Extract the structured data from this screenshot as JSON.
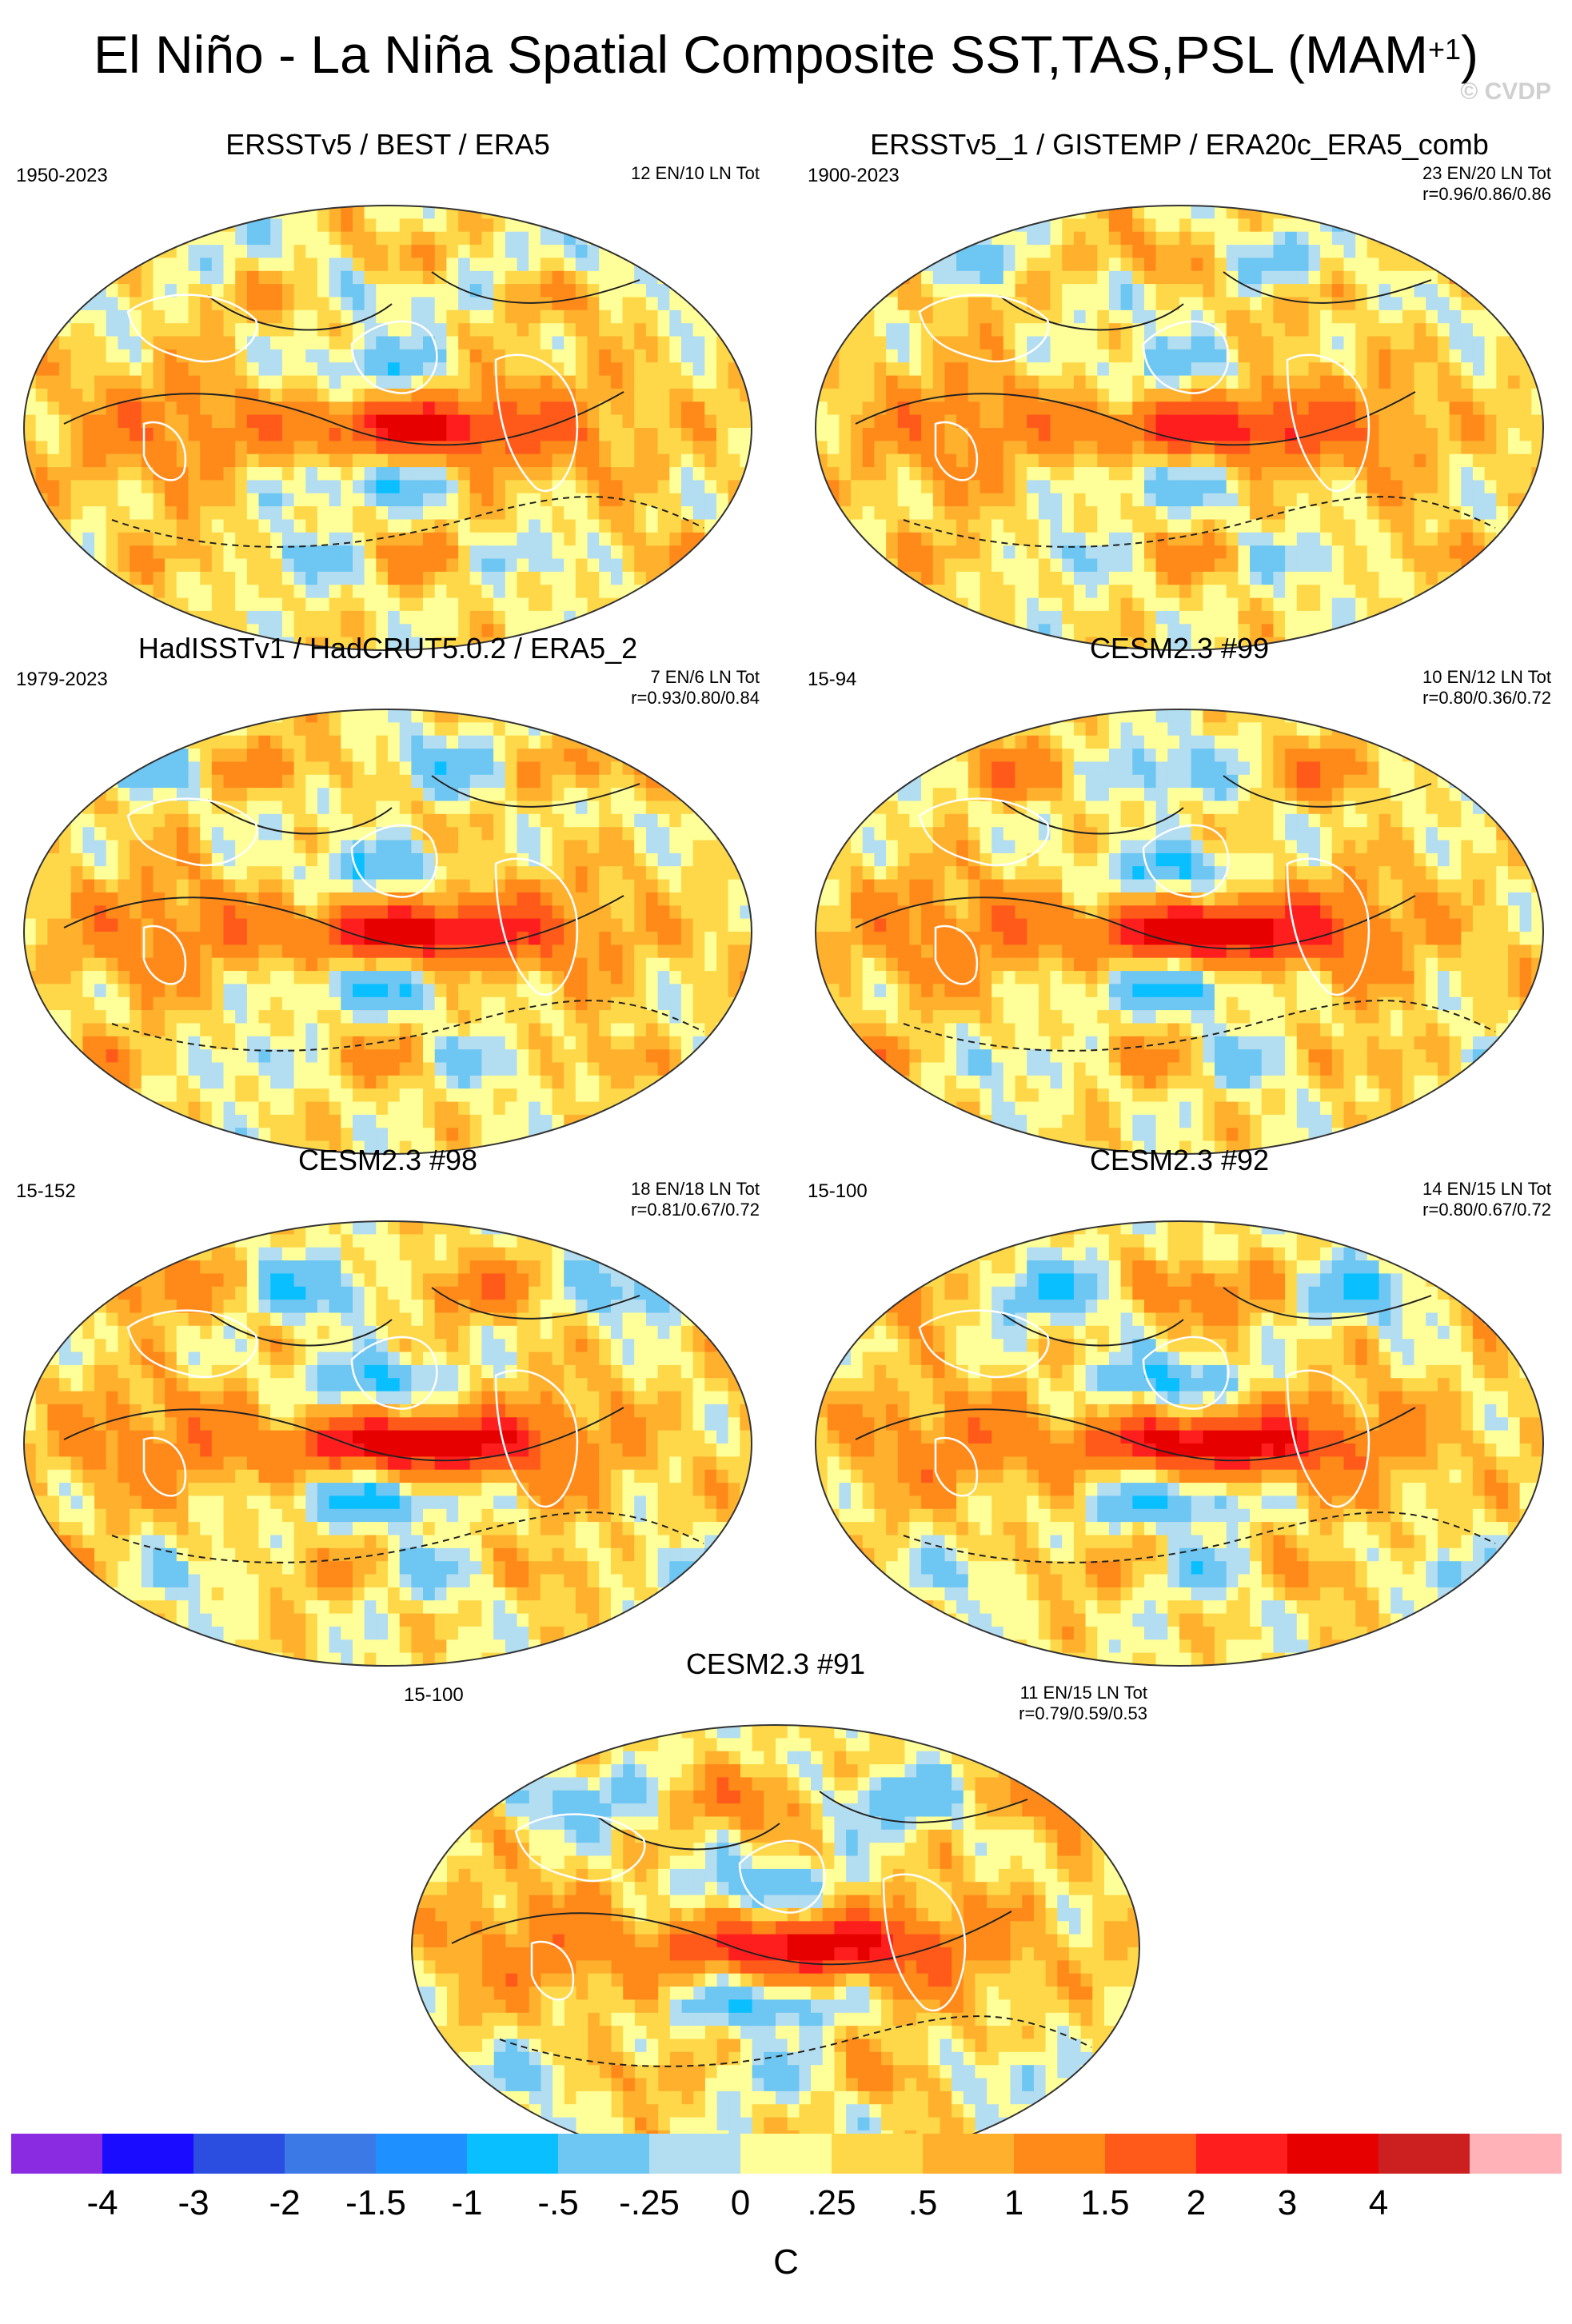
{
  "title": "El Niño - La Niña Spatial Composite SST,TAS,PSL (MAM",
  "title_superscript": "+1",
  "title_close": ")",
  "credit": "© CVDP",
  "chart_data": [
    {
      "type": "heatmap",
      "title": "ERSSTv5 / BEST / ERA5",
      "period": "1950-2023",
      "counts": "12 EN/10 LN Tot",
      "corr": "",
      "nino_strength": 0.75
    },
    {
      "type": "heatmap",
      "title": "ERSSTv5_1 / GISTEMP / ERA20c_ERA5_comb",
      "period": "1900-2023",
      "counts": "23 EN/20 LN Tot",
      "corr": "r=0.96/0.86/0.86",
      "nino_strength": 0.65
    },
    {
      "type": "heatmap",
      "title": "HadISSTv1 / HadCRUT5.0.2 / ERA5_2",
      "period": "1979-2023",
      "counts": "7 EN/6 LN Tot",
      "corr": "r=0.93/0.80/0.84",
      "nino_strength": 0.85
    },
    {
      "type": "heatmap",
      "title": "CESM2.3 #99",
      "period": "15-94",
      "counts": "10 EN/12 LN Tot",
      "corr": "r=0.80/0.36/0.72",
      "nino_strength": 1.0
    },
    {
      "type": "heatmap",
      "title": "CESM2.3 #98",
      "period": "15-152",
      "counts": "18 EN/18 LN Tot",
      "corr": "r=0.81/0.67/0.72",
      "nino_strength": 1.0
    },
    {
      "type": "heatmap",
      "title": "CESM2.3 #92",
      "period": "15-100",
      "counts": "14 EN/15 LN Tot",
      "corr": "r=0.80/0.67/0.72",
      "nino_strength": 0.95
    },
    {
      "type": "heatmap",
      "title": "CESM2.3 #91",
      "period": "15-100",
      "counts": "11 EN/15 LN Tot",
      "corr": "r=0.79/0.59/0.53",
      "nino_strength": 0.9
    }
  ],
  "legend": {
    "units": "C",
    "colors": [
      "#8a2be2",
      "#1a0dff",
      "#2b4ee0",
      "#3a79e6",
      "#1e90ff",
      "#0abfff",
      "#6ec6f2",
      "#b3ddf0",
      "#ffff99",
      "#ffd84a",
      "#ffb12e",
      "#ff8a1a",
      "#ff5a1a",
      "#ff1e1e",
      "#e60000",
      "#cc2020",
      "#ffb3b8"
    ],
    "ticks": [
      "-4",
      "-3",
      "-2",
      "-1.5",
      "-1",
      "-.5",
      "-.25",
      "0",
      ".25",
      ".5",
      "1",
      "1.5",
      "2",
      "3",
      "4"
    ]
  }
}
